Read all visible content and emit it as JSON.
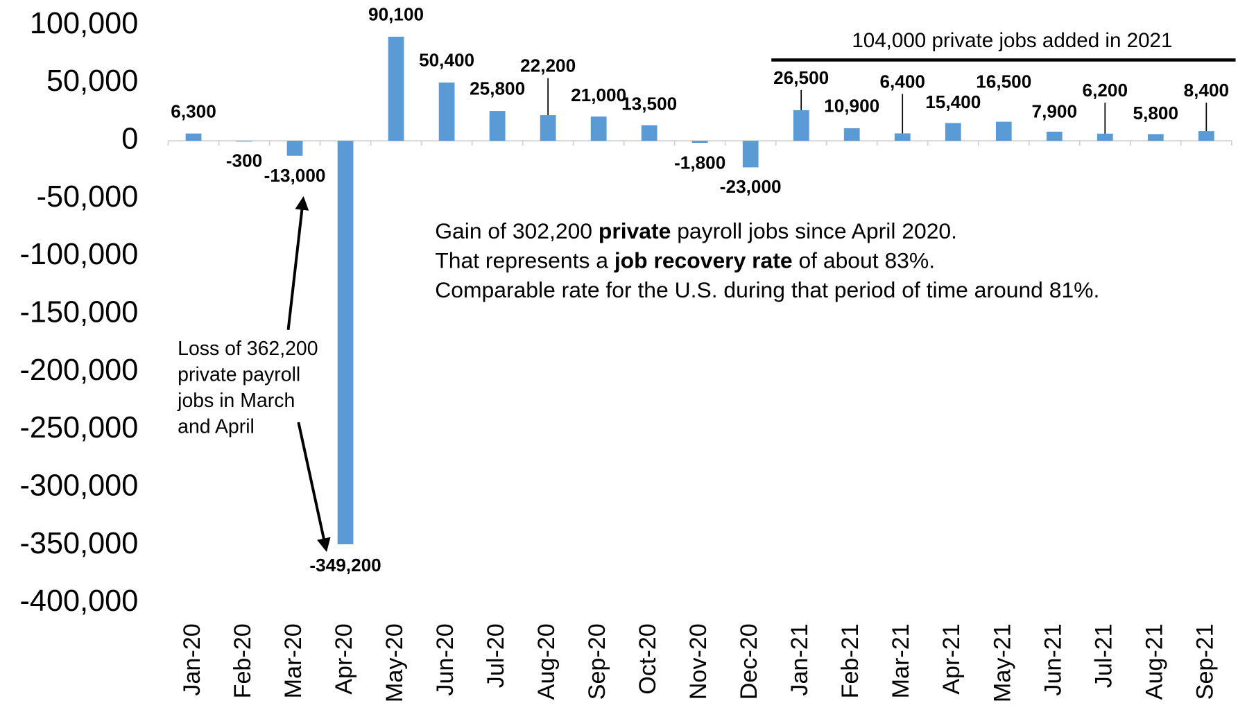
{
  "chart_data": {
    "type": "bar",
    "categories": [
      "Jan-20",
      "Feb-20",
      "Mar-20",
      "Apr-20",
      "May-20",
      "Jun-20",
      "Jul-20",
      "Aug-20",
      "Sep-20",
      "Oct-20",
      "Nov-20",
      "Dec-20",
      "Jan-21",
      "Feb-21",
      "Mar-21",
      "Apr-21",
      "May-21",
      "Jun-21",
      "Jul-21",
      "Aug-21",
      "Sep-21"
    ],
    "values": [
      6300,
      -300,
      -13000,
      -349200,
      90100,
      50400,
      25800,
      22200,
      21000,
      13500,
      -1800,
      -23000,
      26500,
      10900,
      6400,
      15400,
      16500,
      7900,
      6200,
      5800,
      8400
    ],
    "value_labels": [
      "6,300",
      "-300",
      "-13,000",
      "-349,200",
      "90,100",
      "50,400",
      "25,800",
      "22,200",
      "21,000",
      "13,500",
      "-1,800",
      "-23,000",
      "26,500",
      "10,900",
      "6,400",
      "15,400",
      "16,500",
      "7,900",
      "6,200",
      "5,800",
      "8,400"
    ],
    "color": "#5b9bd5",
    "ylim": [
      -400000,
      100000
    ],
    "yticks": [
      {
        "value": 100000,
        "label": "100,000"
      },
      {
        "value": 50000,
        "label": "50,000"
      },
      {
        "value": 0,
        "label": "0"
      },
      {
        "value": -50000,
        "label": "-50,000"
      },
      {
        "value": -100000,
        "label": "-100,000"
      },
      {
        "value": -150000,
        "label": "-150,000"
      },
      {
        "value": -200000,
        "label": "-200,000"
      },
      {
        "value": -250000,
        "label": "-250,000"
      },
      {
        "value": -300000,
        "label": "-300,000"
      },
      {
        "value": -350000,
        "label": "-350,000"
      },
      {
        "value": -400000,
        "label": "-400,000"
      }
    ],
    "grid": false,
    "annotations": {
      "bracket": "104,000 private jobs added in 2021",
      "loss": [
        "Loss of 362,200",
        "private payroll",
        "jobs in March",
        "and April"
      ],
      "gain": [
        [
          {
            "text": "Gain of 302,200 ",
            "bold": false
          },
          {
            "text": "private",
            "bold": true
          },
          {
            "text": " payroll jobs since April 2020.",
            "bold": false
          }
        ],
        [
          {
            "text": "That represents a ",
            "bold": false
          },
          {
            "text": "job recovery rate",
            "bold": true
          },
          {
            "text": " of about 83%.",
            "bold": false
          }
        ],
        [
          {
            "text": "Comparable rate for the U.S. during that period of time around 81%.",
            "bold": false
          }
        ]
      ]
    }
  }
}
